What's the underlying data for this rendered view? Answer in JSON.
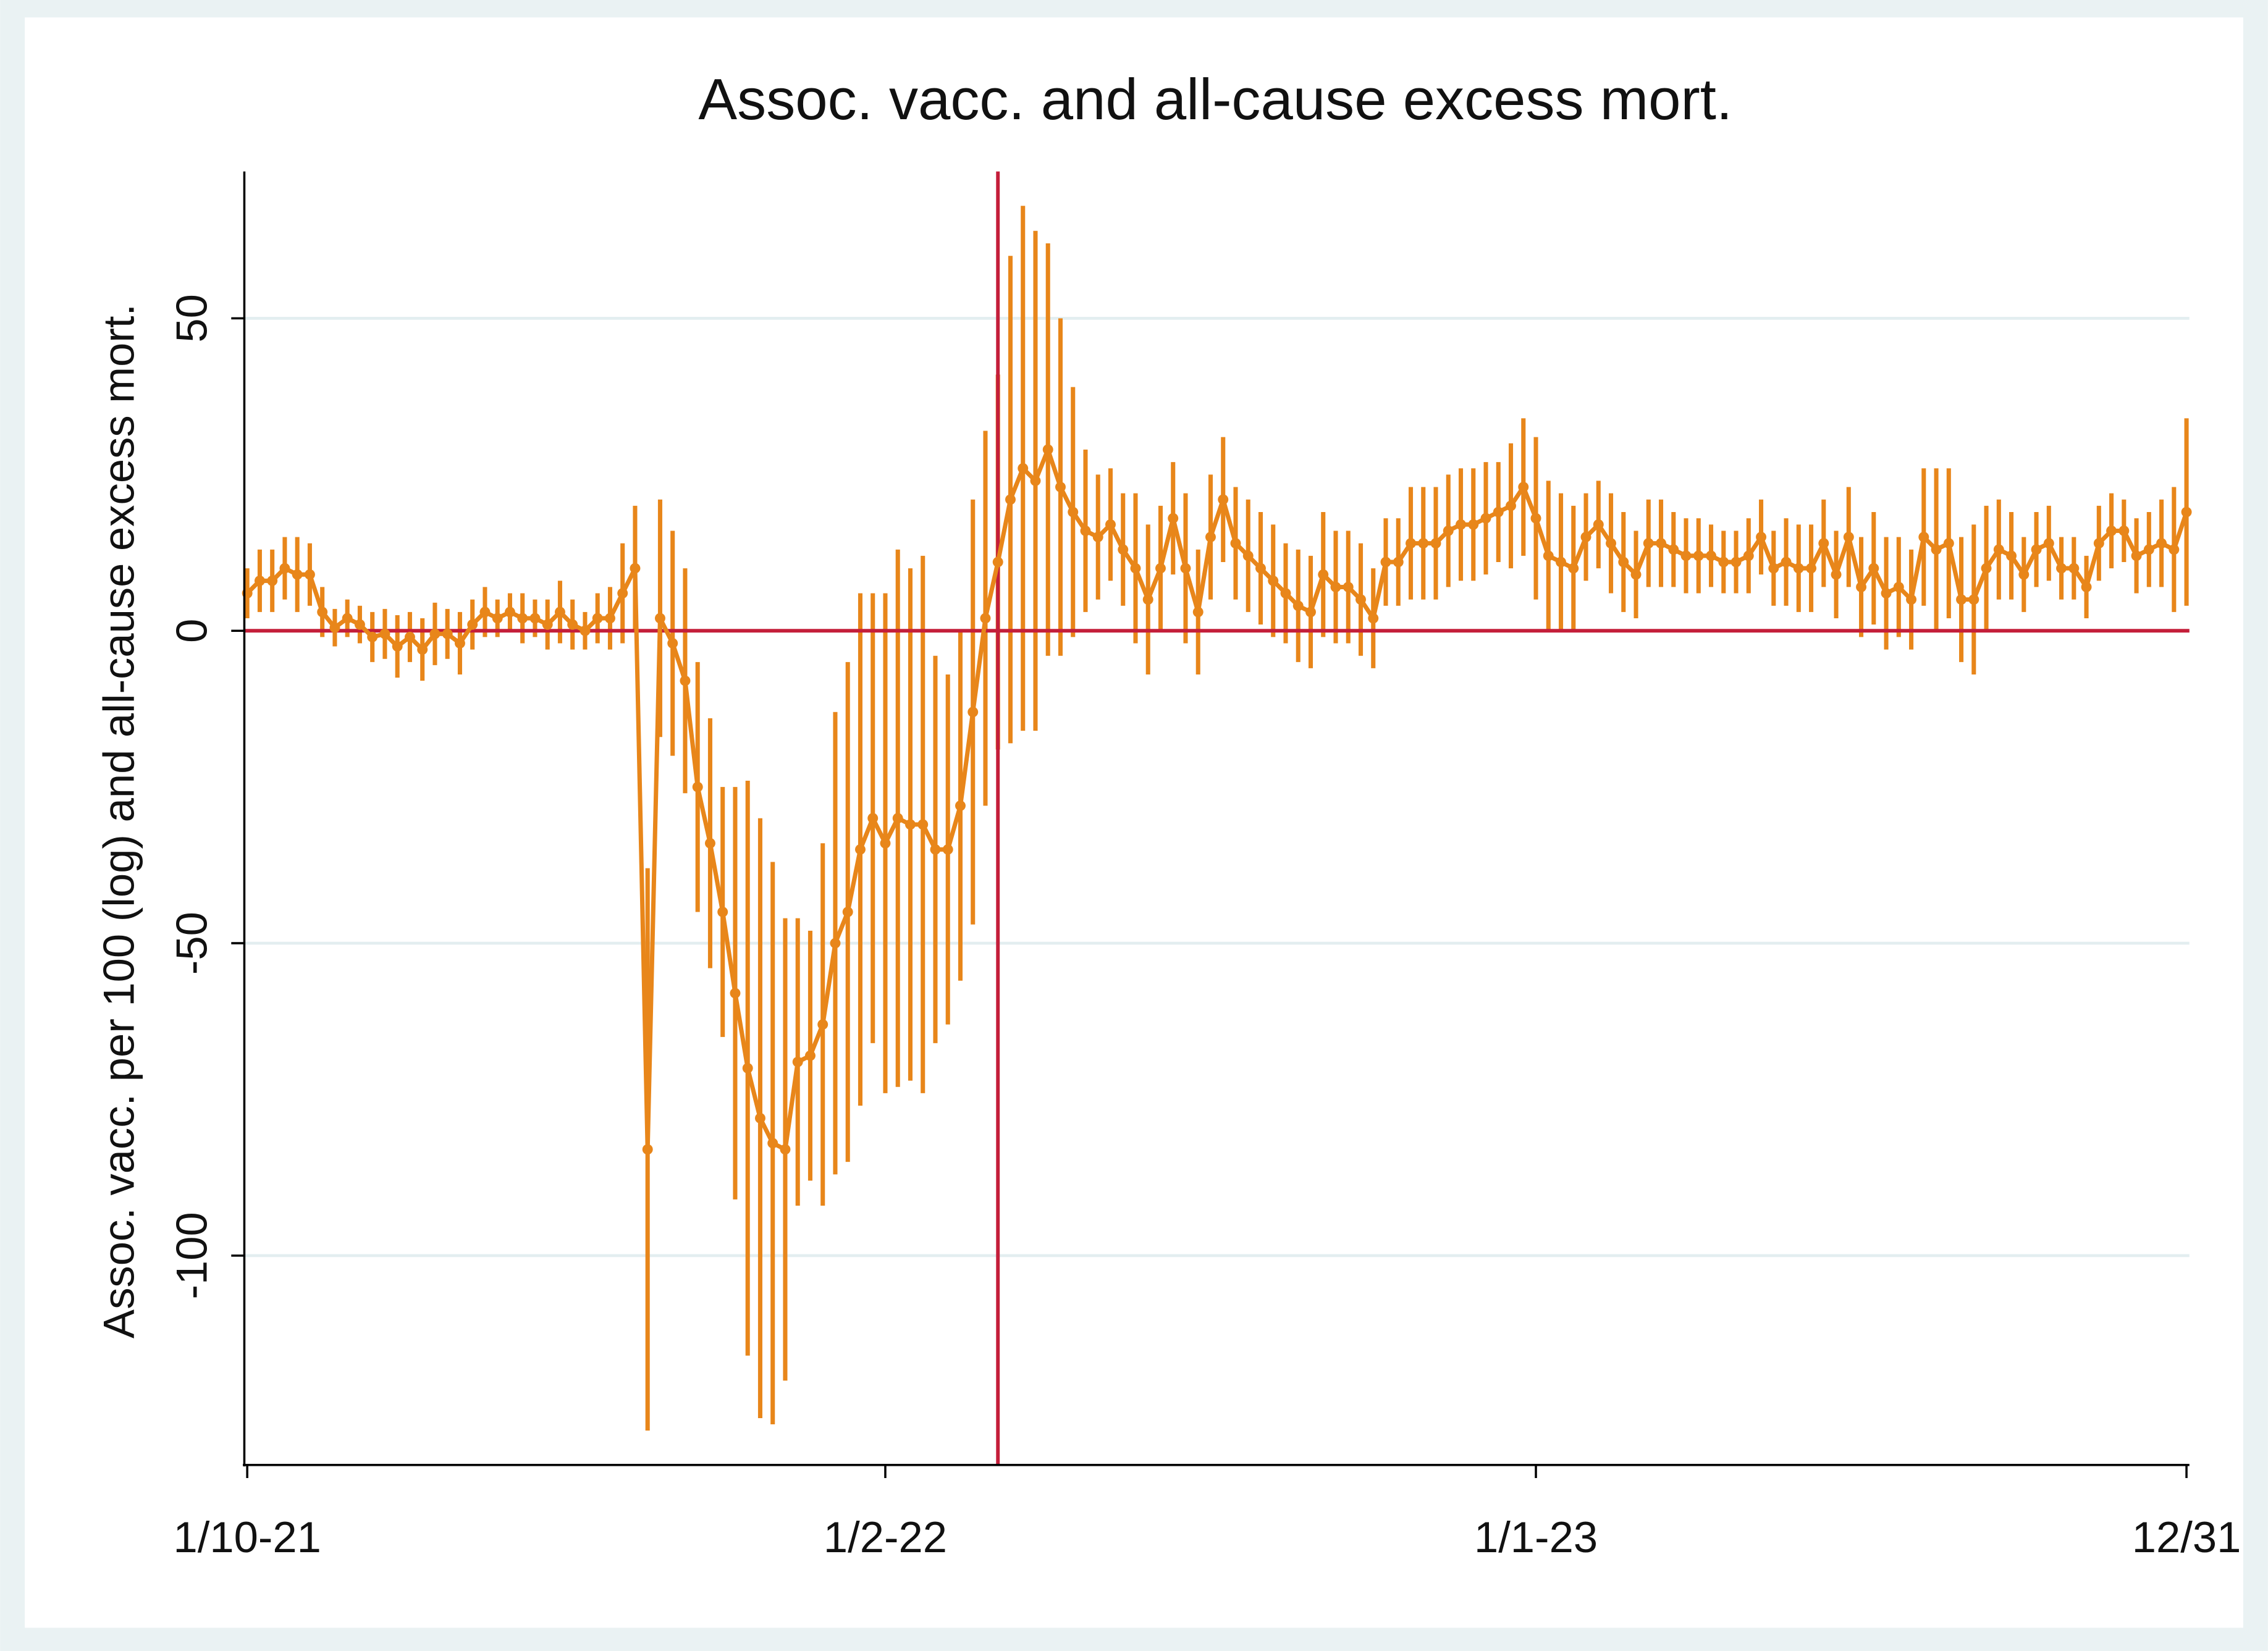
{
  "chart_data": {
    "type": "line",
    "title": "Assoc. vacc. and all-cause excess mort.",
    "y_label": "Assoc. vacc. per 100 (log) and all-cause excess mort.",
    "categories": [
      "1/10-21",
      null,
      null,
      null,
      null,
      null,
      null,
      null,
      null,
      null,
      null,
      null,
      null,
      null,
      null,
      null,
      null,
      null,
      null,
      null,
      null,
      null,
      null,
      null,
      null,
      null,
      null,
      null,
      null,
      null,
      null,
      null,
      null,
      null,
      null,
      null,
      null,
      null,
      null,
      null,
      null,
      null,
      null,
      null,
      null,
      null,
      null,
      null,
      null,
      null,
      null,
      "1/2-22",
      null,
      null,
      null,
      null,
      null,
      null,
      null,
      null,
      null,
      null,
      null,
      null,
      null,
      null,
      null,
      null,
      null,
      null,
      null,
      null,
      null,
      null,
      null,
      null,
      null,
      null,
      null,
      null,
      null,
      null,
      null,
      null,
      null,
      null,
      null,
      null,
      null,
      null,
      null,
      null,
      null,
      null,
      null,
      null,
      null,
      null,
      null,
      null,
      null,
      null,
      null,
      "1/1-23",
      null,
      null,
      null,
      null,
      null,
      null,
      null,
      null,
      null,
      null,
      null,
      null,
      null,
      null,
      null,
      null,
      null,
      null,
      null,
      null,
      null,
      null,
      null,
      null,
      null,
      null,
      null,
      null,
      null,
      null,
      null,
      null,
      null,
      null,
      null,
      null,
      null,
      null,
      null,
      null,
      null,
      null,
      null,
      null,
      null,
      null,
      null,
      null,
      null,
      null,
      null,
      "12/31"
    ],
    "values": [
      6,
      8,
      8,
      10,
      9,
      9,
      3,
      0.5,
      2,
      1,
      -1,
      -0.5,
      -2.5,
      -1,
      -3,
      -0.5,
      -0.5,
      -2,
      1,
      3,
      2,
      3,
      2,
      2,
      1,
      3,
      1,
      0,
      2,
      2,
      6,
      10,
      -83,
      2,
      -2,
      -8,
      -25,
      -34,
      -45,
      -58,
      -70,
      -78,
      -82,
      -83,
      -69,
      -68,
      -63,
      -50,
      -45,
      -35,
      -30,
      -34,
      -30,
      -31,
      -31,
      -35,
      -35,
      -28,
      -13,
      2,
      11,
      21,
      26,
      24,
      29,
      23,
      19,
      16,
      15,
      17,
      13,
      10,
      5,
      10,
      18,
      10,
      3,
      15,
      21,
      14,
      12,
      10,
      8,
      6,
      4,
      3,
      9,
      7,
      7,
      5,
      2,
      11,
      11,
      14,
      14,
      14,
      16,
      17,
      17,
      18,
      19,
      20,
      23,
      18,
      12,
      11,
      10,
      15,
      17,
      14,
      11,
      9,
      14,
      14,
      13,
      12,
      12,
      12,
      11,
      11,
      12,
      15,
      10,
      11,
      10,
      10,
      14,
      9,
      15,
      7,
      10,
      6,
      7,
      5,
      15,
      13,
      14,
      5,
      5,
      10,
      13,
      12,
      9,
      13,
      14,
      10,
      10,
      7,
      14,
      16,
      16,
      12,
      13,
      14,
      13,
      19
    ],
    "errors": [
      4,
      5,
      5,
      5,
      6,
      5,
      4,
      3,
      3,
      3,
      4,
      4,
      5,
      4,
      5,
      5,
      4,
      5,
      4,
      4,
      3,
      3,
      4,
      3,
      4,
      5,
      4,
      3,
      4,
      5,
      8,
      10,
      45,
      19,
      18,
      18,
      20,
      20,
      20,
      33,
      46,
      48,
      45,
      37,
      23,
      20,
      29,
      37,
      40,
      41,
      36,
      40,
      43,
      41,
      43,
      31,
      28,
      28,
      34,
      30,
      30,
      39,
      42,
      40,
      33,
      27,
      20,
      13,
      10,
      9,
      9,
      12,
      12,
      10,
      9,
      12,
      10,
      10,
      10,
      9,
      9,
      9,
      9,
      8,
      9,
      9,
      10,
      9,
      9,
      9,
      8,
      7,
      7,
      9,
      9,
      9,
      9,
      9,
      9,
      9,
      8,
      10,
      11,
      13,
      12,
      11,
      10,
      7,
      7,
      8,
      8,
      7,
      7,
      7,
      6,
      6,
      6,
      5,
      5,
      5,
      6,
      6,
      6,
      7,
      7,
      7,
      7,
      7,
      8,
      8,
      9,
      9,
      8,
      8,
      11,
      13,
      12,
      10,
      12,
      10,
      8,
      7,
      6,
      6,
      6,
      5,
      5,
      5,
      6,
      6,
      5,
      6,
      6,
      7,
      10,
      15
    ],
    "color": "#e8861a",
    "reference_color": "#c41e3a",
    "hline": 0,
    "vline": 60,
    "ylim": [
      -133.5,
      73.5
    ],
    "yticks": [
      -100,
      -50,
      0,
      50
    ],
    "grid": true
  }
}
